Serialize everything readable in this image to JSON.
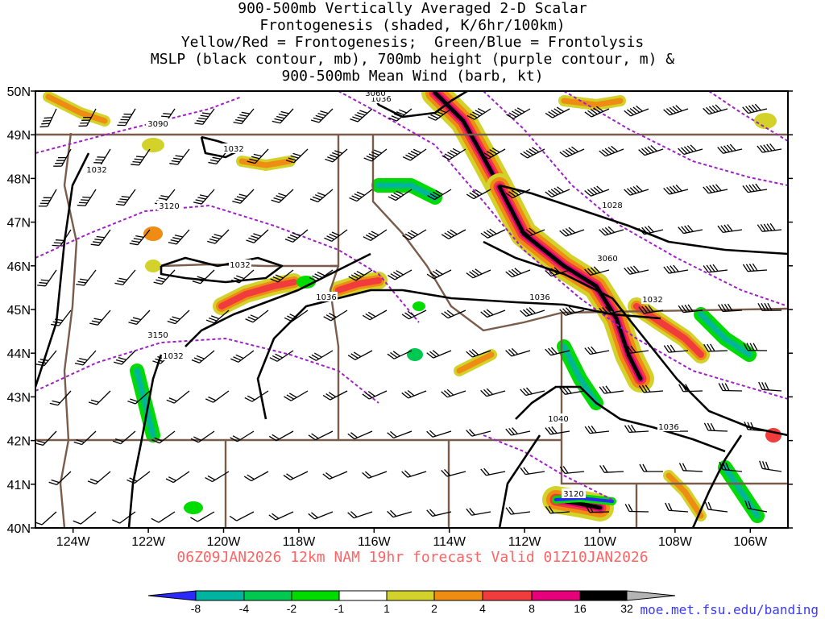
{
  "title_lines": [
    "900-500mb Vertically Averaged 2-D Scalar",
    "Frontogenesis (shaded, K/6hr/100km)",
    "Yellow/Red = Frontogenesis;  Green/Blue = Frontolysis",
    "MSLP (black contour, mb), 700mb height (purple contour, m) &",
    "900-500mb Mean Wind (barb, kt)"
  ],
  "map": {
    "lon_range": [
      -125,
      -105
    ],
    "lat_range": [
      40,
      50
    ],
    "lat_labels": [
      "50N",
      "49N",
      "48N",
      "47N",
      "46N",
      "45N",
      "44N",
      "43N",
      "42N",
      "41N",
      "40N"
    ],
    "lon_labels": [
      "124W",
      "122W",
      "120W",
      "118W",
      "116W",
      "114W",
      "112W",
      "110W",
      "108W",
      "106W"
    ],
    "colors": {
      "border": "#7a5c4a",
      "mslp": "#000000",
      "height": "#a020c8",
      "barb": "#000000"
    }
  },
  "mslp_labels": [
    "1032",
    "1036",
    "1028",
    "1032",
    "1036",
    "1036",
    "1032",
    "1040",
    "1036",
    "1032",
    "1032"
  ],
  "height_labels": [
    "3090",
    "3120",
    "3060",
    "3150",
    "3120",
    "3060"
  ],
  "colorbar": {
    "labels": [
      "-8",
      "-4",
      "-2",
      "-1",
      "1",
      "2",
      "4",
      "8",
      "16",
      "32"
    ],
    "colors": [
      "#2a2aff",
      "#00b4a0",
      "#00c850",
      "#00dc00",
      "#ffffff",
      "#d2d22a",
      "#ee8c14",
      "#f03c3c",
      "#e6007a",
      "#000000"
    ]
  },
  "footer": "06Z09JAN2026 12km NAM 19hr forecast Valid 01Z10JAN2026",
  "credit": "moe.met.fsu.edu/banding"
}
